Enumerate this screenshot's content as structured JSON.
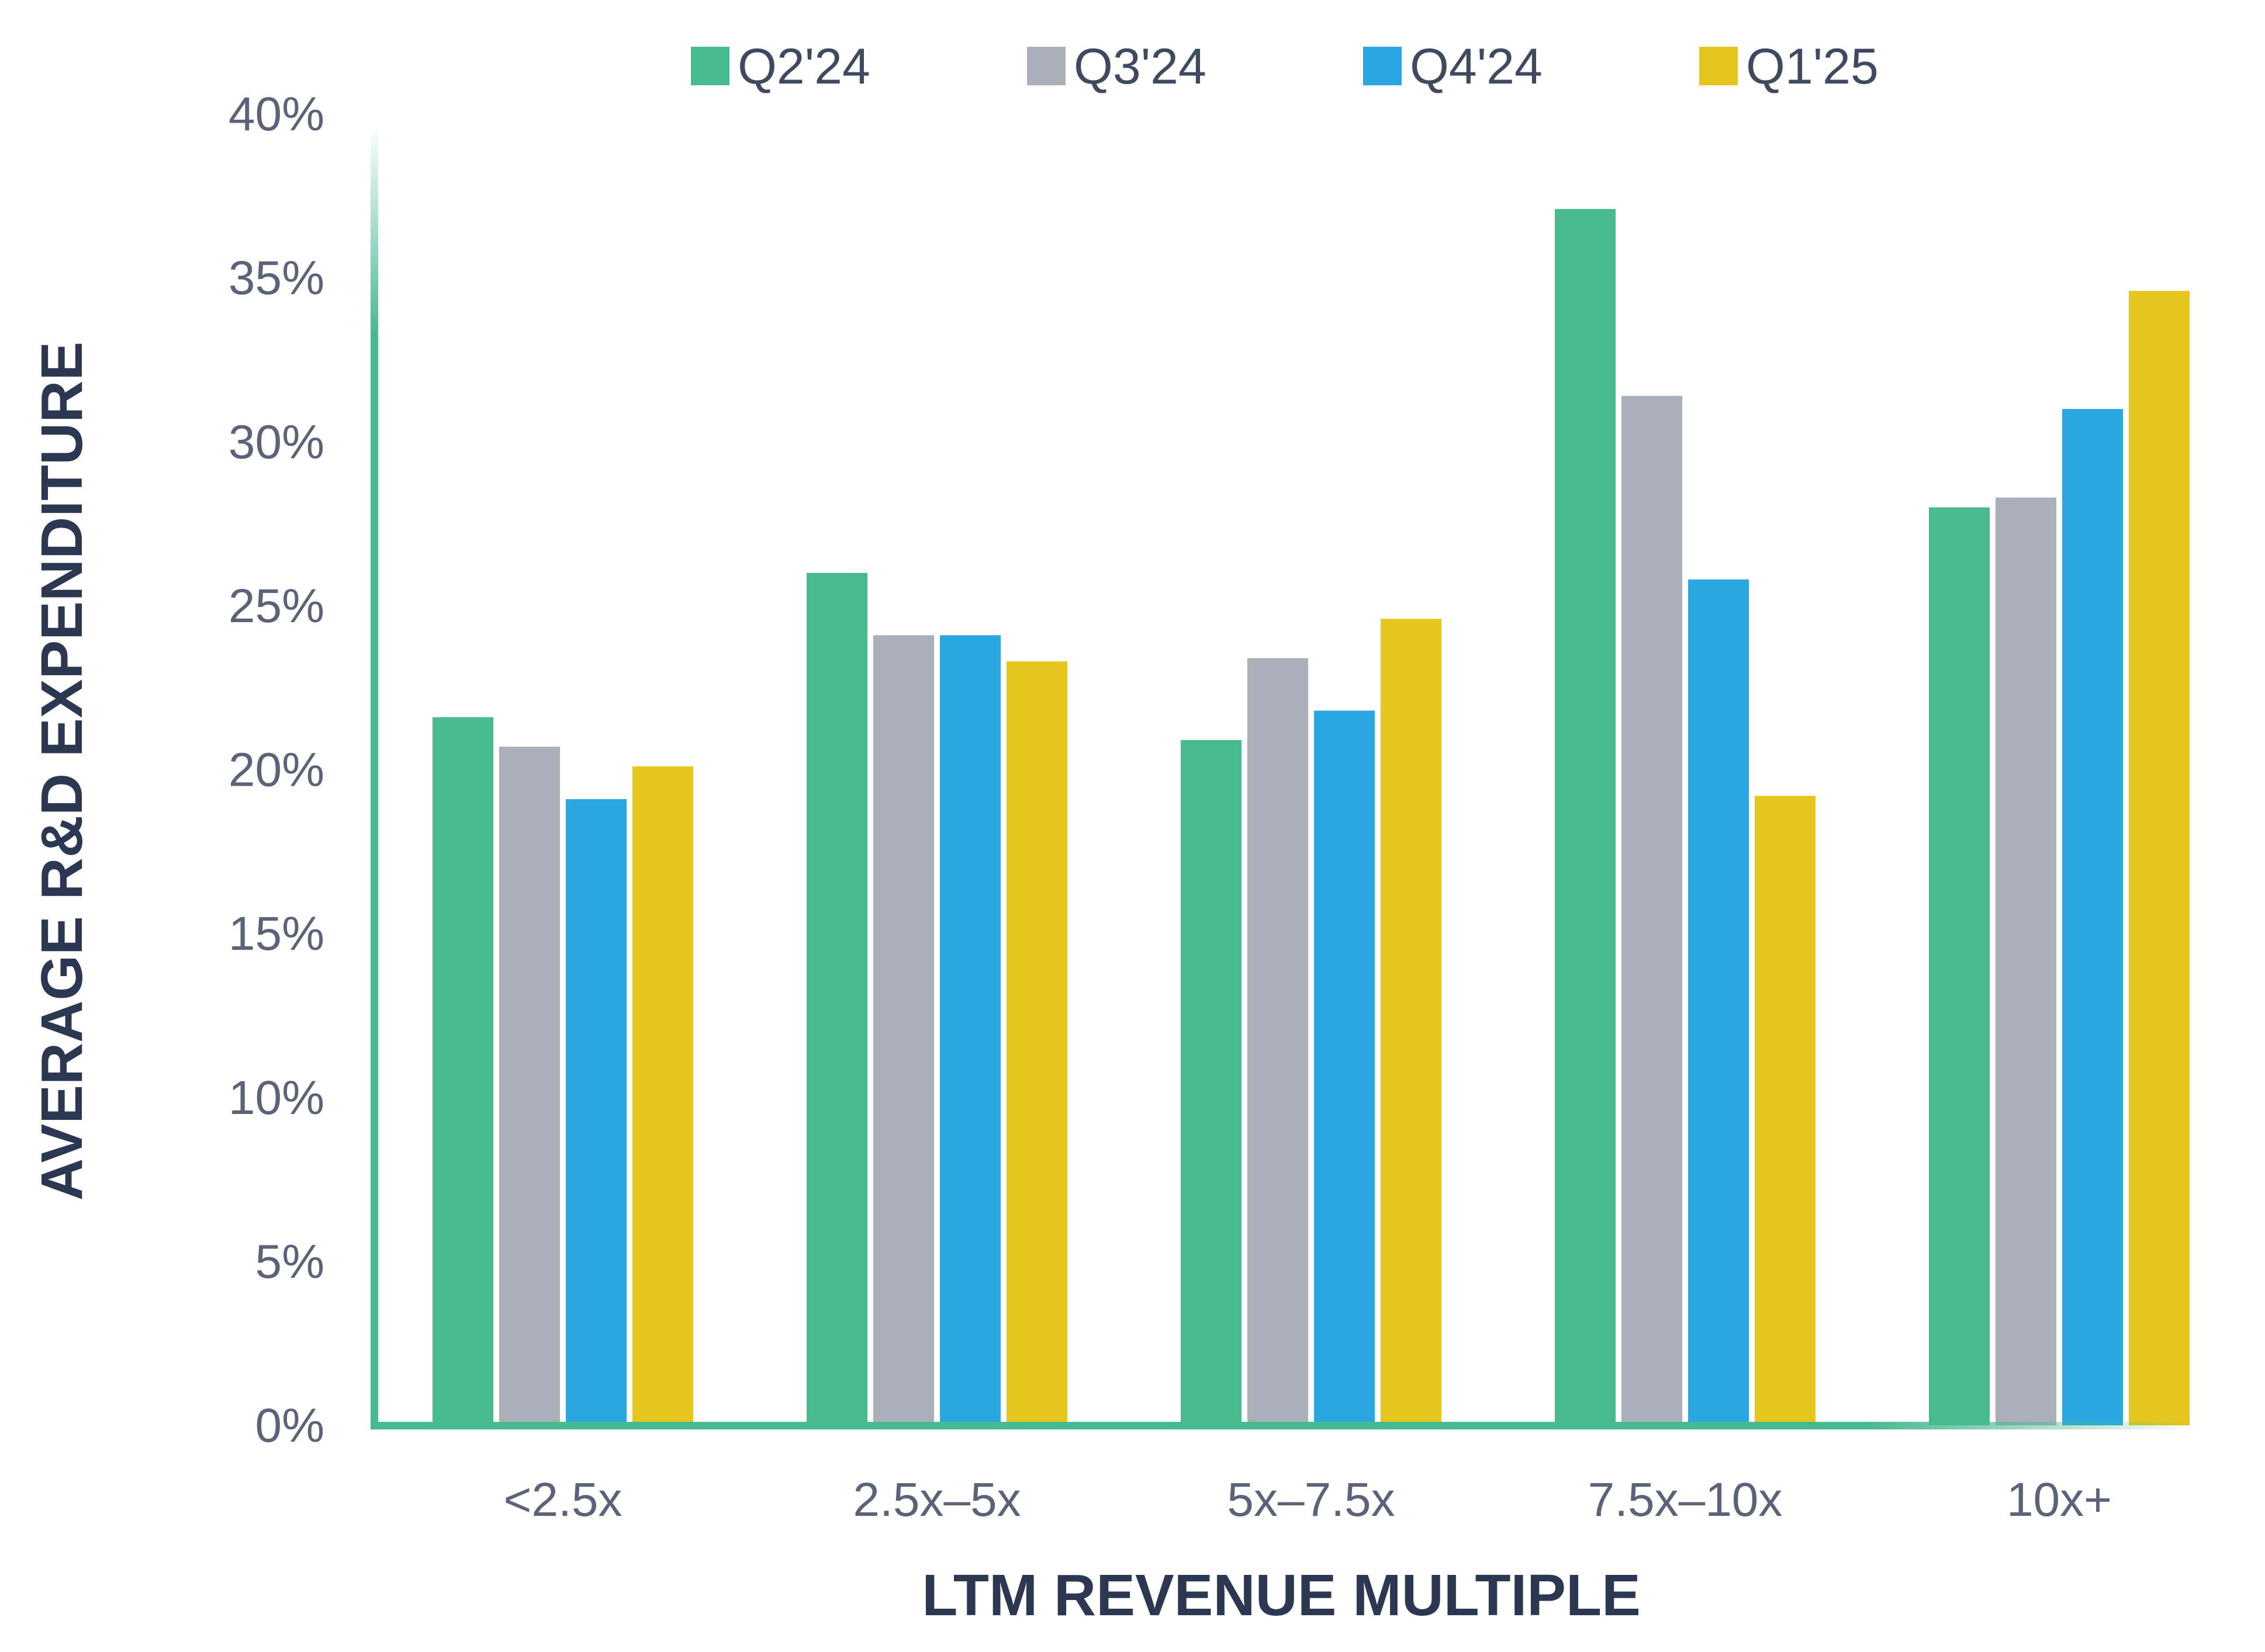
{
  "chart_data": {
    "type": "bar",
    "title": "",
    "xlabel": "LTM REVENUE MULTIPLE",
    "ylabel": "AVERAGE R&D EXPENDITURE",
    "ylim": [
      0,
      40
    ],
    "y_ticks": [
      0,
      5,
      10,
      15,
      20,
      25,
      30,
      35,
      40
    ],
    "y_tick_labels": [
      "0%",
      "5%",
      "10%",
      "15%",
      "20%",
      "25%",
      "30%",
      "35%",
      "40%"
    ],
    "categories": [
      "<2.5x",
      "2.5x–5x",
      "5x–7.5x",
      "7.5x–10x",
      "10x+"
    ],
    "series": [
      {
        "name": "Q2'24",
        "color": "#48ba8f",
        "values": [
          21.6,
          26.0,
          20.9,
          37.1,
          28.0
        ]
      },
      {
        "name": "Q3'24",
        "color": "#abafba",
        "values": [
          20.7,
          24.1,
          23.4,
          31.4,
          28.3
        ]
      },
      {
        "name": "Q4'24",
        "color": "#2ca6e0",
        "values": [
          19.1,
          24.1,
          21.8,
          25.8,
          31.0
        ]
      },
      {
        "name": "Q1'25",
        "color": "#e6c61d",
        "values": [
          20.1,
          23.3,
          24.6,
          19.2,
          34.6
        ]
      }
    ],
    "legend_position": "top",
    "grid": false,
    "axis_color": "#48ba8f"
  }
}
